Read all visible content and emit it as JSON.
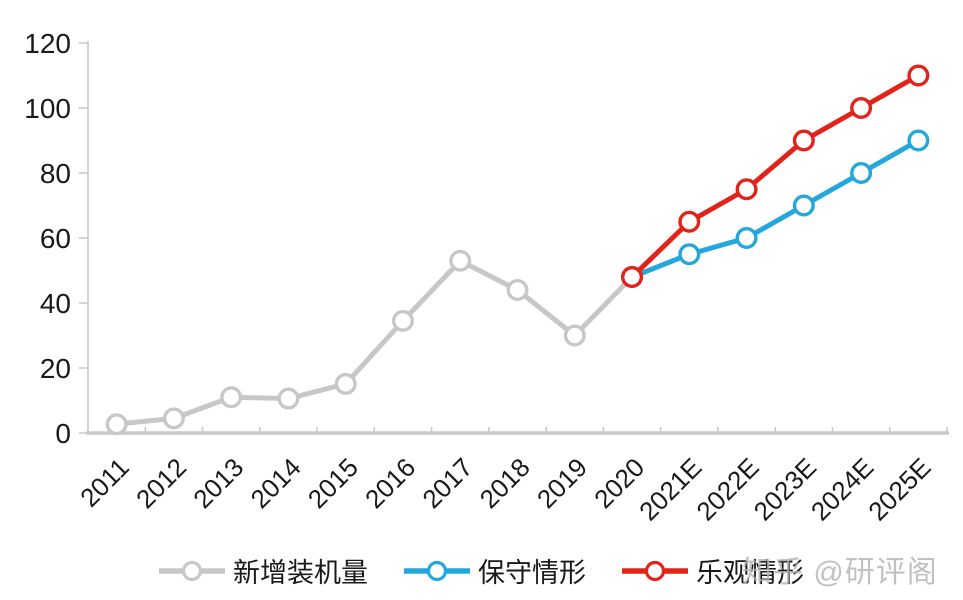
{
  "chart_data": {
    "type": "line",
    "categories": [
      "2011",
      "2012",
      "2013",
      "2014",
      "2015",
      "2016",
      "2017",
      "2018",
      "2019",
      "2020",
      "2021E",
      "2022E",
      "2023E",
      "2024E",
      "2025E"
    ],
    "series": [
      {
        "name": "新增装机量",
        "color": "#c7c7c7",
        "values": [
          2.7,
          4.5,
          11,
          10.6,
          15.1,
          34.5,
          53,
          44,
          30,
          48,
          null,
          null,
          null,
          null,
          null
        ]
      },
      {
        "name": "保守情形",
        "color": "#24a7dc",
        "values": [
          null,
          null,
          null,
          null,
          null,
          null,
          null,
          null,
          null,
          48,
          55,
          60,
          70,
          80,
          90
        ]
      },
      {
        "name": "乐观情形",
        "color": "#e2231a",
        "values": [
          null,
          null,
          null,
          null,
          null,
          null,
          null,
          null,
          null,
          48,
          65,
          75,
          90,
          100,
          110
        ]
      }
    ],
    "title": "",
    "xlabel": "",
    "ylabel": "",
    "ylim": [
      0,
      120
    ],
    "yticks": [
      0,
      20,
      40,
      60,
      80,
      100,
      120
    ],
    "grid": false,
    "legend_position": "bottom"
  },
  "axis": {
    "line_color": "#c9c9c9",
    "label_color": "#1a1a1a"
  },
  "watermark": {
    "text": "知乎 @研评阁"
  }
}
